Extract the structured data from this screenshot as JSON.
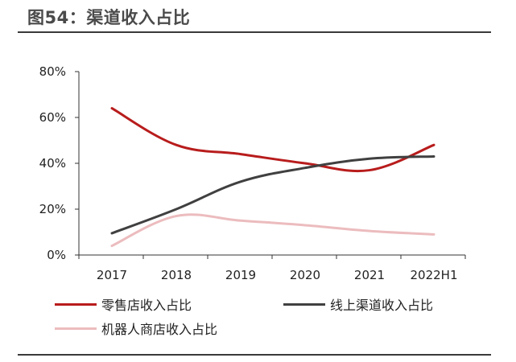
{
  "figure_title": "图54：渠道收入占比",
  "chart_data": {
    "type": "line",
    "categories": [
      "2017",
      "2018",
      "2019",
      "2020",
      "2021",
      "2022H1"
    ],
    "y_ticks": [
      "0%",
      "20%",
      "40%",
      "60%",
      "80%"
    ],
    "ylim": [
      0,
      80
    ],
    "grid": false,
    "legend_placement": "bottom",
    "series": [
      {
        "name": "零售店收入占比",
        "color": "#b81c1c",
        "values": [
          64,
          48,
          44,
          40,
          37,
          48
        ]
      },
      {
        "name": "线上渠道收入占比",
        "color": "#404040",
        "values": [
          9.5,
          20,
          32,
          38,
          42,
          43
        ]
      },
      {
        "name": "机器人商店收入占比",
        "color": "#ecbcbe",
        "values": [
          4,
          17,
          15,
          13,
          10.5,
          9
        ]
      }
    ]
  }
}
